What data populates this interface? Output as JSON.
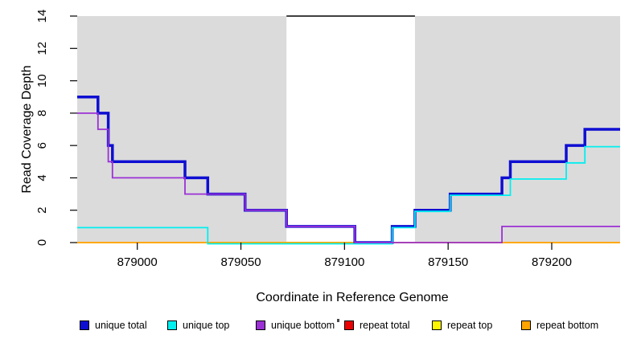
{
  "figure": {
    "background": "#FFFFFF",
    "xlabel": "Coordinate in Reference Genome",
    "ylabel": "Read Coverage Depth"
  },
  "legend": {
    "items": [
      {
        "label": "unique total",
        "color": "#0E0ED2"
      },
      {
        "label": "unique top",
        "color": "#00EFEF"
      },
      {
        "label": "unique bottom",
        "color": "#9B30D5"
      },
      {
        "label": "repeat total",
        "color": "#EA0000"
      },
      {
        "label": "repeat top",
        "color": "#FFF500"
      },
      {
        "label": "repeat bottom",
        "color": "#FFA400"
      }
    ],
    "stray_mark": "'"
  },
  "chart_data": {
    "type": "line",
    "subtype": "step",
    "title": "",
    "xlabel": "Coordinate in Reference Genome",
    "ylabel": "Read Coverage Depth",
    "xlim": [
      878971,
      879233
    ],
    "ylim": [
      0,
      14
    ],
    "x_ticks": [
      879000,
      879050,
      879100,
      879150,
      879200
    ],
    "y_ticks": [
      0,
      2,
      4,
      6,
      8,
      10,
      12,
      14
    ],
    "grid": false,
    "legend_position": "bottom",
    "plot_background": "#DBDBDB",
    "highlight_region": {
      "x0": 879072,
      "x1": 879134,
      "fill": "#FFFFFF",
      "top_line_value": 14,
      "top_line_color": "#000000"
    },
    "series": [
      {
        "name": "unique total",
        "color": "#0E0ED2",
        "points": [
          [
            878971,
            9
          ],
          [
            878981,
            8
          ],
          [
            878986,
            6
          ],
          [
            878988,
            5
          ],
          [
            879023,
            4
          ],
          [
            879034,
            3
          ],
          [
            879052,
            2
          ],
          [
            879072,
            1
          ],
          [
            879105,
            0
          ],
          [
            879123,
            1
          ],
          [
            879134,
            2
          ],
          [
            879151,
            3
          ],
          [
            879176,
            4
          ],
          [
            879180,
            5
          ],
          [
            879207,
            6
          ],
          [
            879216,
            7
          ],
          [
            879233,
            7
          ]
        ]
      },
      {
        "name": "unique top",
        "color": "#00EFEF",
        "points": [
          [
            878971,
            1
          ],
          [
            879034,
            0
          ],
          [
            879123,
            1
          ],
          [
            879134,
            2
          ],
          [
            879151,
            3
          ],
          [
            879180,
            4
          ],
          [
            879207,
            5
          ],
          [
            879216,
            6
          ],
          [
            879233,
            6
          ]
        ]
      },
      {
        "name": "unique bottom",
        "color": "#9B30D5",
        "points": [
          [
            878971,
            8
          ],
          [
            878981,
            7
          ],
          [
            878986,
            5
          ],
          [
            878988,
            4
          ],
          [
            879023,
            3
          ],
          [
            879052,
            2
          ],
          [
            879072,
            1
          ],
          [
            879105,
            0
          ],
          [
            879176,
            1
          ],
          [
            879233,
            1
          ]
        ]
      },
      {
        "name": "repeat total",
        "color": "#EA0000",
        "points": [
          [
            878971,
            0
          ],
          [
            879233,
            0
          ]
        ]
      },
      {
        "name": "repeat top",
        "color": "#FFF500",
        "points": [
          [
            878971,
            0
          ],
          [
            879233,
            0
          ]
        ]
      },
      {
        "name": "repeat bottom",
        "color": "#FFA400",
        "points": [
          [
            878971,
            0
          ],
          [
            879233,
            0
          ]
        ]
      }
    ]
  }
}
